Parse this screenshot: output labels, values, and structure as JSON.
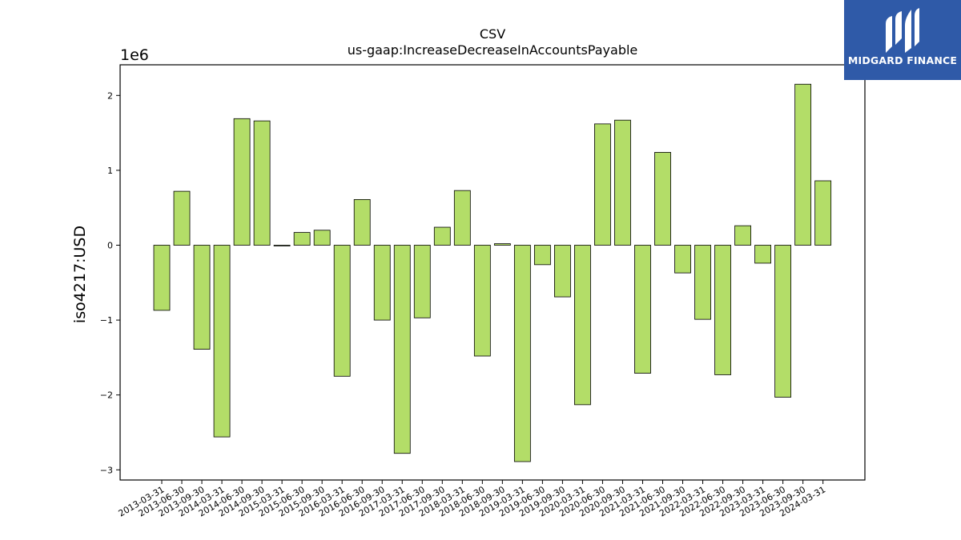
{
  "chart_data": {
    "type": "bar",
    "title": "CSV",
    "subtitle": "us-gaap:IncreaseDecreaseInAccountsPayable",
    "ylabel": "iso4217:USD",
    "xlabel": "",
    "y_scale_label": "1e6",
    "ylim": [
      -3150000,
      2400000
    ],
    "yticks": [
      2,
      1,
      0,
      -1,
      -2,
      -3
    ],
    "ytick_labels": [
      "2",
      "1",
      "0",
      "−1",
      "−2",
      "−3"
    ],
    "bar_color": "#b3dd68",
    "categories": [
      "2013-03-31",
      "2013-06-30",
      "2013-09-30",
      "2014-03-31",
      "2014-06-30",
      "2014-09-30",
      "2015-03-31",
      "2015-06-30",
      "2015-09-30",
      "2016-03-31",
      "2016-06-30",
      "2016-09-30",
      "2017-03-31",
      "2017-06-30",
      "2017-09-30",
      "2018-03-31",
      "2018-06-30",
      "2018-09-30",
      "2019-03-31",
      "2019-06-30",
      "2019-09-30",
      "2020-03-31",
      "2020-06-30",
      "2020-09-30",
      "2021-03-31",
      "2021-06-30",
      "2021-09-30",
      "2022-03-31",
      "2022-06-30",
      "2022-09-30",
      "2023-03-31",
      "2023-06-30",
      "2023-09-30",
      "2024-03-31"
    ],
    "values": [
      -870000,
      720000,
      -1390000,
      -2560000,
      1690000,
      1660000,
      -10000,
      170000,
      200000,
      -1750000,
      610000,
      -1000000,
      -2780000,
      -970000,
      240000,
      730000,
      -1480000,
      20000,
      -2890000,
      -260000,
      -690000,
      -2130000,
      1620000,
      1670000,
      -1710000,
      1240000,
      -370000,
      -990000,
      -1730000,
      260000,
      -240000,
      -2030000,
      2150000,
      860000
    ]
  },
  "logo": {
    "text": "MIDGARD FINANCE",
    "bg_color": "#2f5aa8"
  }
}
